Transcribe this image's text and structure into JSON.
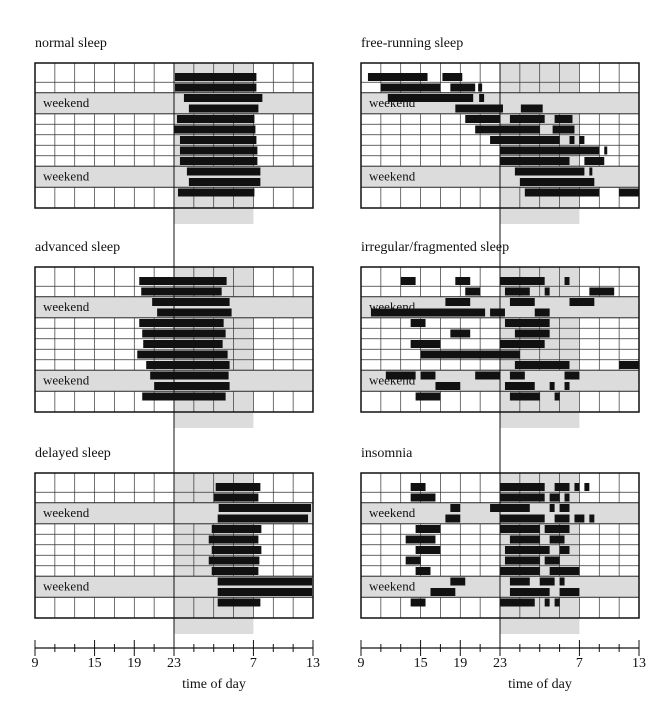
{
  "axis": {
    "xlim": [
      9,
      37
    ],
    "shade": [
      23,
      31
    ],
    "xticks": [
      9,
      15,
      19,
      23,
      {
        "value": 31,
        "label": "7"
      },
      {
        "value": 37,
        "label": "13"
      }
    ],
    "xminor": [
      11,
      13,
      17,
      21,
      25,
      27,
      29,
      33,
      35
    ],
    "grid": [
      11,
      13,
      15,
      17,
      19,
      21,
      23,
      25,
      27,
      29,
      31,
      33,
      35
    ],
    "xlabel": "time of day"
  },
  "chart_data": [
    {
      "type": "actogram",
      "title": "normal sleep",
      "weekend_label": "weekend",
      "weekends": [
        [
          2,
          3
        ],
        [
          9,
          10
        ]
      ],
      "rows": [
        [
          [
            23.1,
            31.3
          ]
        ],
        [
          [
            23.1,
            31.3
          ]
        ],
        [
          [
            24,
            31.9
          ]
        ],
        [
          [
            24.5,
            31.5
          ]
        ],
        [
          [
            23.3,
            31.1
          ]
        ],
        [
          [
            23,
            31.2
          ]
        ],
        [
          [
            23.6,
            31.3
          ]
        ],
        [
          [
            23.6,
            31.4
          ]
        ],
        [
          [
            23.6,
            31.4
          ]
        ],
        [
          [
            24.3,
            31.7
          ]
        ],
        [
          [
            24.5,
            31.7
          ]
        ],
        [
          [
            23.4,
            31.1
          ]
        ]
      ]
    },
    {
      "type": "actogram",
      "title": "advanced sleep",
      "weekend_label": "weekend",
      "weekends": [
        [
          2,
          3
        ],
        [
          9,
          10
        ]
      ],
      "rows": [
        [
          [
            19.5,
            28.3
          ]
        ],
        [
          [
            19.7,
            27.8
          ]
        ],
        [
          [
            20.8,
            28.6
          ]
        ],
        [
          [
            21.3,
            28.8
          ]
        ],
        [
          [
            19.5,
            28
          ]
        ],
        [
          [
            19.8,
            28.2
          ]
        ],
        [
          [
            19.9,
            27.9
          ]
        ],
        [
          [
            19.3,
            28.4
          ]
        ],
        [
          [
            20.2,
            28.6
          ]
        ],
        [
          [
            20.6,
            28.5
          ]
        ],
        [
          [
            21,
            28.6
          ]
        ],
        [
          [
            19.8,
            28.2
          ]
        ]
      ]
    },
    {
      "type": "actogram",
      "title": "delayed sleep",
      "weekend_label": "weekend",
      "weekends": [
        [
          2,
          3
        ],
        [
          9,
          10
        ]
      ],
      "rows": [
        [
          [
            27.2,
            31.7
          ]
        ],
        [
          [
            27,
            31.5
          ]
        ],
        [
          [
            27.5,
            36.8
          ]
        ],
        [
          [
            27.4,
            36.5
          ]
        ],
        [
          [
            26.8,
            31.8
          ]
        ],
        [
          [
            26.5,
            31.5
          ]
        ],
        [
          [
            26.8,
            31.8
          ]
        ],
        [
          [
            26.5,
            31.6
          ]
        ],
        [
          [
            26.8,
            31.5
          ]
        ],
        [
          [
            27.4,
            36.9
          ]
        ],
        [
          [
            27.4,
            36.9
          ]
        ],
        [
          [
            27.4,
            31.7
          ]
        ]
      ],
      "bottom": true
    },
    {
      "type": "actogram",
      "title": "free-running sleep",
      "weekend_label": "weekend",
      "weekends": [
        [
          2,
          3
        ],
        [
          9,
          10
        ]
      ],
      "rows": [
        [
          [
            9.7,
            15.7
          ],
          [
            17.2,
            19.2
          ]
        ],
        [
          [
            11,
            17
          ],
          [
            18,
            20.5
          ],
          [
            20.8,
            21.2
          ]
        ],
        [
          [
            11.7,
            20.3
          ],
          [
            20.9,
            21.4
          ]
        ],
        [
          [
            18.5,
            23.3
          ],
          [
            25.1,
            27.3
          ]
        ],
        [
          [
            19.5,
            23
          ],
          [
            24,
            27.5
          ],
          [
            28.5,
            30.3
          ]
        ],
        [
          [
            20.5,
            27
          ],
          [
            28.3,
            30.5
          ]
        ],
        [
          [
            22,
            29
          ],
          [
            30,
            30.5
          ],
          [
            31,
            31.5
          ]
        ],
        [
          [
            23,
            33
          ],
          [
            33.5,
            33.8
          ]
        ],
        [
          [
            23,
            30
          ],
          [
            31.5,
            33.5
          ]
        ],
        [
          [
            24.5,
            31.5
          ],
          [
            32,
            32.3
          ]
        ],
        [
          [
            25,
            32.5
          ]
        ],
        [
          [
            25.5,
            33
          ],
          [
            35,
            37
          ]
        ]
      ]
    },
    {
      "type": "actogram",
      "title": "irregular/fragmented sleep",
      "weekend_label": "weekend",
      "weekends": [
        [
          2,
          3
        ],
        [
          9,
          10
        ]
      ],
      "rows": [
        [
          [
            13,
            14.5
          ],
          [
            18.5,
            20
          ],
          [
            23,
            27.5
          ],
          [
            29.5,
            30
          ]
        ],
        [
          [
            19.5,
            21
          ],
          [
            23.5,
            26
          ],
          [
            27.5,
            28
          ],
          [
            32,
            34.5
          ]
        ],
        [
          [
            17.5,
            20
          ],
          [
            24,
            26.5
          ],
          [
            30,
            32.5
          ]
        ],
        [
          [
            10,
            21.5
          ],
          [
            22,
            23.5
          ],
          [
            26.5,
            28
          ]
        ],
        [
          [
            14,
            15.5
          ],
          [
            23.5,
            28
          ]
        ],
        [
          [
            18,
            20
          ],
          [
            24.5,
            28
          ]
        ],
        [
          [
            14,
            17
          ],
          [
            23,
            27.5
          ]
        ],
        [
          [
            15,
            25
          ]
        ],
        [
          [
            24.5,
            30
          ],
          [
            35,
            37
          ]
        ],
        [
          [
            11.5,
            14.5
          ],
          [
            15,
            16.5
          ],
          [
            20.5,
            23
          ],
          [
            24,
            25.5
          ],
          [
            29.5,
            31
          ]
        ],
        [
          [
            16.5,
            19
          ],
          [
            23.5,
            26.5
          ],
          [
            28,
            28.5
          ],
          [
            29.5,
            30
          ]
        ],
        [
          [
            14.5,
            17
          ],
          [
            24,
            27
          ],
          [
            28.5,
            29
          ]
        ]
      ]
    },
    {
      "type": "actogram",
      "title": "insomnia",
      "weekend_label": "weekend",
      "weekends": [
        [
          2,
          3
        ],
        [
          9,
          10
        ]
      ],
      "rows": [
        [
          [
            14,
            15.5
          ],
          [
            23,
            27.5
          ],
          [
            28.5,
            30
          ],
          [
            30.5,
            31
          ],
          [
            31.5,
            32
          ]
        ],
        [
          [
            14,
            16.5
          ],
          [
            23,
            27.5
          ],
          [
            28,
            29
          ],
          [
            29.5,
            30
          ]
        ],
        [
          [
            18,
            19
          ],
          [
            22,
            26
          ],
          [
            28,
            28.5
          ],
          [
            29,
            30
          ]
        ],
        [
          [
            17.5,
            19
          ],
          [
            23,
            27.5
          ],
          [
            28.5,
            30
          ],
          [
            30.5,
            31.5
          ],
          [
            32,
            32.5
          ]
        ],
        [
          [
            14.5,
            17
          ],
          [
            23,
            27
          ],
          [
            27.5,
            30
          ]
        ],
        [
          [
            13.5,
            16.5
          ],
          [
            24,
            27
          ],
          [
            28,
            29.5
          ]
        ],
        [
          [
            14.5,
            17
          ],
          [
            23.5,
            28
          ],
          [
            29,
            30
          ]
        ],
        [
          [
            13.5,
            15
          ],
          [
            23.5,
            27
          ],
          [
            27.5,
            29
          ]
        ],
        [
          [
            14.5,
            16
          ],
          [
            23,
            27
          ],
          [
            28,
            31
          ]
        ],
        [
          [
            18,
            19.5
          ],
          [
            24,
            26
          ],
          [
            27,
            28.5
          ],
          [
            29,
            29.5
          ]
        ],
        [
          [
            16,
            18.5
          ],
          [
            24,
            28
          ],
          [
            29,
            31
          ]
        ],
        [
          [
            14,
            15.5
          ],
          [
            23,
            26.5
          ],
          [
            27.5,
            28
          ],
          [
            28.5,
            29
          ]
        ]
      ],
      "bottom": true
    }
  ]
}
